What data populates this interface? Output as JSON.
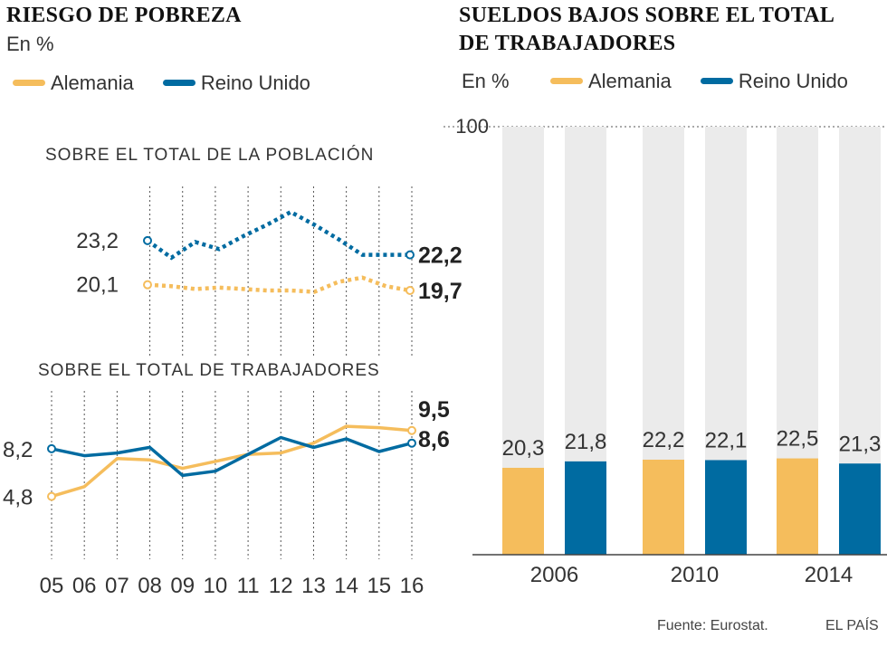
{
  "colors": {
    "germany": "#f5bd5c",
    "uk": "#006ba1",
    "track": "#ebebeb",
    "grid": "#555555"
  },
  "left": {
    "title": "RIESGO DE POBREZA",
    "unit": "En %",
    "legend": [
      "Alemania",
      "Reino Unido"
    ]
  },
  "right": {
    "title_line1": "SUELDOS BAJOS SOBRE EL TOTAL",
    "title_line2": "DE TRABAJADORES",
    "unit": "En %",
    "legend": [
      "Alemania",
      "Reino Unido"
    ]
  },
  "source": "Fuente: Eurostat.",
  "brand": "EL PAÍS",
  "chart_data": [
    {
      "type": "line",
      "title": "SOBRE EL TOTAL DE LA POBLACIÓN",
      "x": [
        "05",
        "06",
        "07",
        "08",
        "09",
        "10",
        "11",
        "12",
        "13",
        "14",
        "15",
        "16"
      ],
      "ylim": [
        15,
        27
      ],
      "style": "dotted",
      "series": [
        {
          "name": "Alemania",
          "key": "germany",
          "values": [
            20.1,
            20.0,
            19.8,
            19.9,
            19.8,
            19.7,
            19.7,
            19.6,
            20.3,
            20.6,
            20.0,
            19.7
          ],
          "start_label": "20,1",
          "end_label": "19,7"
        },
        {
          "name": "Reino Unido",
          "key": "uk",
          "values": [
            23.2,
            22.0,
            23.1,
            22.6,
            23.5,
            24.3,
            25.2,
            24.3,
            23.3,
            22.2,
            22.2,
            22.2
          ],
          "start_label": "23,2",
          "end_label": "22,2"
        }
      ]
    },
    {
      "type": "line",
      "title": "SOBRE EL TOTAL DE TRABAJADORES",
      "x": [
        "05",
        "06",
        "07",
        "08",
        "09",
        "10",
        "11",
        "12",
        "13",
        "14",
        "15",
        "16"
      ],
      "ylim": [
        0,
        12
      ],
      "style": "solid",
      "series": [
        {
          "name": "Alemania",
          "key": "germany",
          "values": [
            4.8,
            5.5,
            7.5,
            7.4,
            6.8,
            7.3,
            7.8,
            7.9,
            8.6,
            9.8,
            9.7,
            9.5
          ],
          "start_label": "4,8",
          "end_label": "9,5"
        },
        {
          "name": "Reino Unido",
          "key": "uk",
          "values": [
            8.2,
            7.7,
            7.9,
            8.3,
            6.3,
            6.6,
            7.8,
            9.0,
            8.3,
            8.9,
            8.0,
            8.6
          ],
          "start_label": "8,2",
          "end_label": "8,6"
        }
      ]
    },
    {
      "type": "bar",
      "title": "SUELDOS BAJOS SOBRE EL TOTAL DE TRABAJADORES",
      "categories": [
        "2006",
        "2010",
        "2014"
      ],
      "ylim": [
        0,
        100
      ],
      "ytick_label": "100",
      "series": [
        {
          "name": "Alemania",
          "key": "germany",
          "values": [
            20.3,
            22.2,
            22.5
          ],
          "labels": [
            "20,3",
            "22,2",
            "22,5"
          ]
        },
        {
          "name": "Reino Unido",
          "key": "uk",
          "values": [
            21.8,
            22.1,
            21.3
          ],
          "labels": [
            "21,8",
            "22,1",
            "21,3"
          ]
        }
      ]
    }
  ]
}
